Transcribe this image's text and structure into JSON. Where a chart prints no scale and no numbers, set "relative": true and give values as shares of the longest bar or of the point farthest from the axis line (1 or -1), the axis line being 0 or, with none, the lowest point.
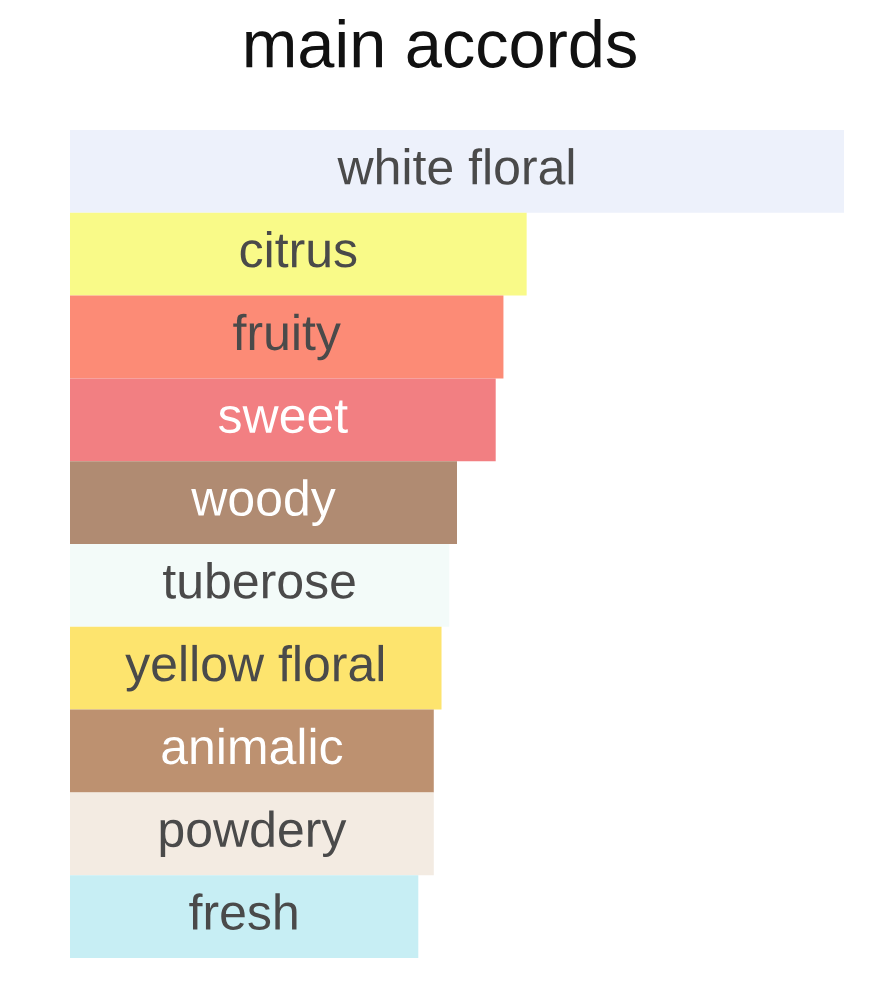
{
  "chart_data": {
    "type": "bar",
    "orientation": "horizontal",
    "relative": true,
    "title": "main accords",
    "categories": [
      "white floral",
      "citrus",
      "fruity",
      "sweet",
      "woody",
      "tuberose",
      "yellow floral",
      "animalic",
      "powdery",
      "fresh"
    ],
    "values": [
      1,
      0.59,
      0.56,
      0.55,
      0.5,
      0.49,
      0.48,
      0.47,
      0.47,
      0.45
    ],
    "colors": [
      "#edf1fb",
      "#f9fa88",
      "#fc8b76",
      "#f27f82",
      "#b08b72",
      "#f3fbf9",
      "#fde46e",
      "#bd9170",
      "#f3ebe2",
      "#c7eef4"
    ]
  }
}
